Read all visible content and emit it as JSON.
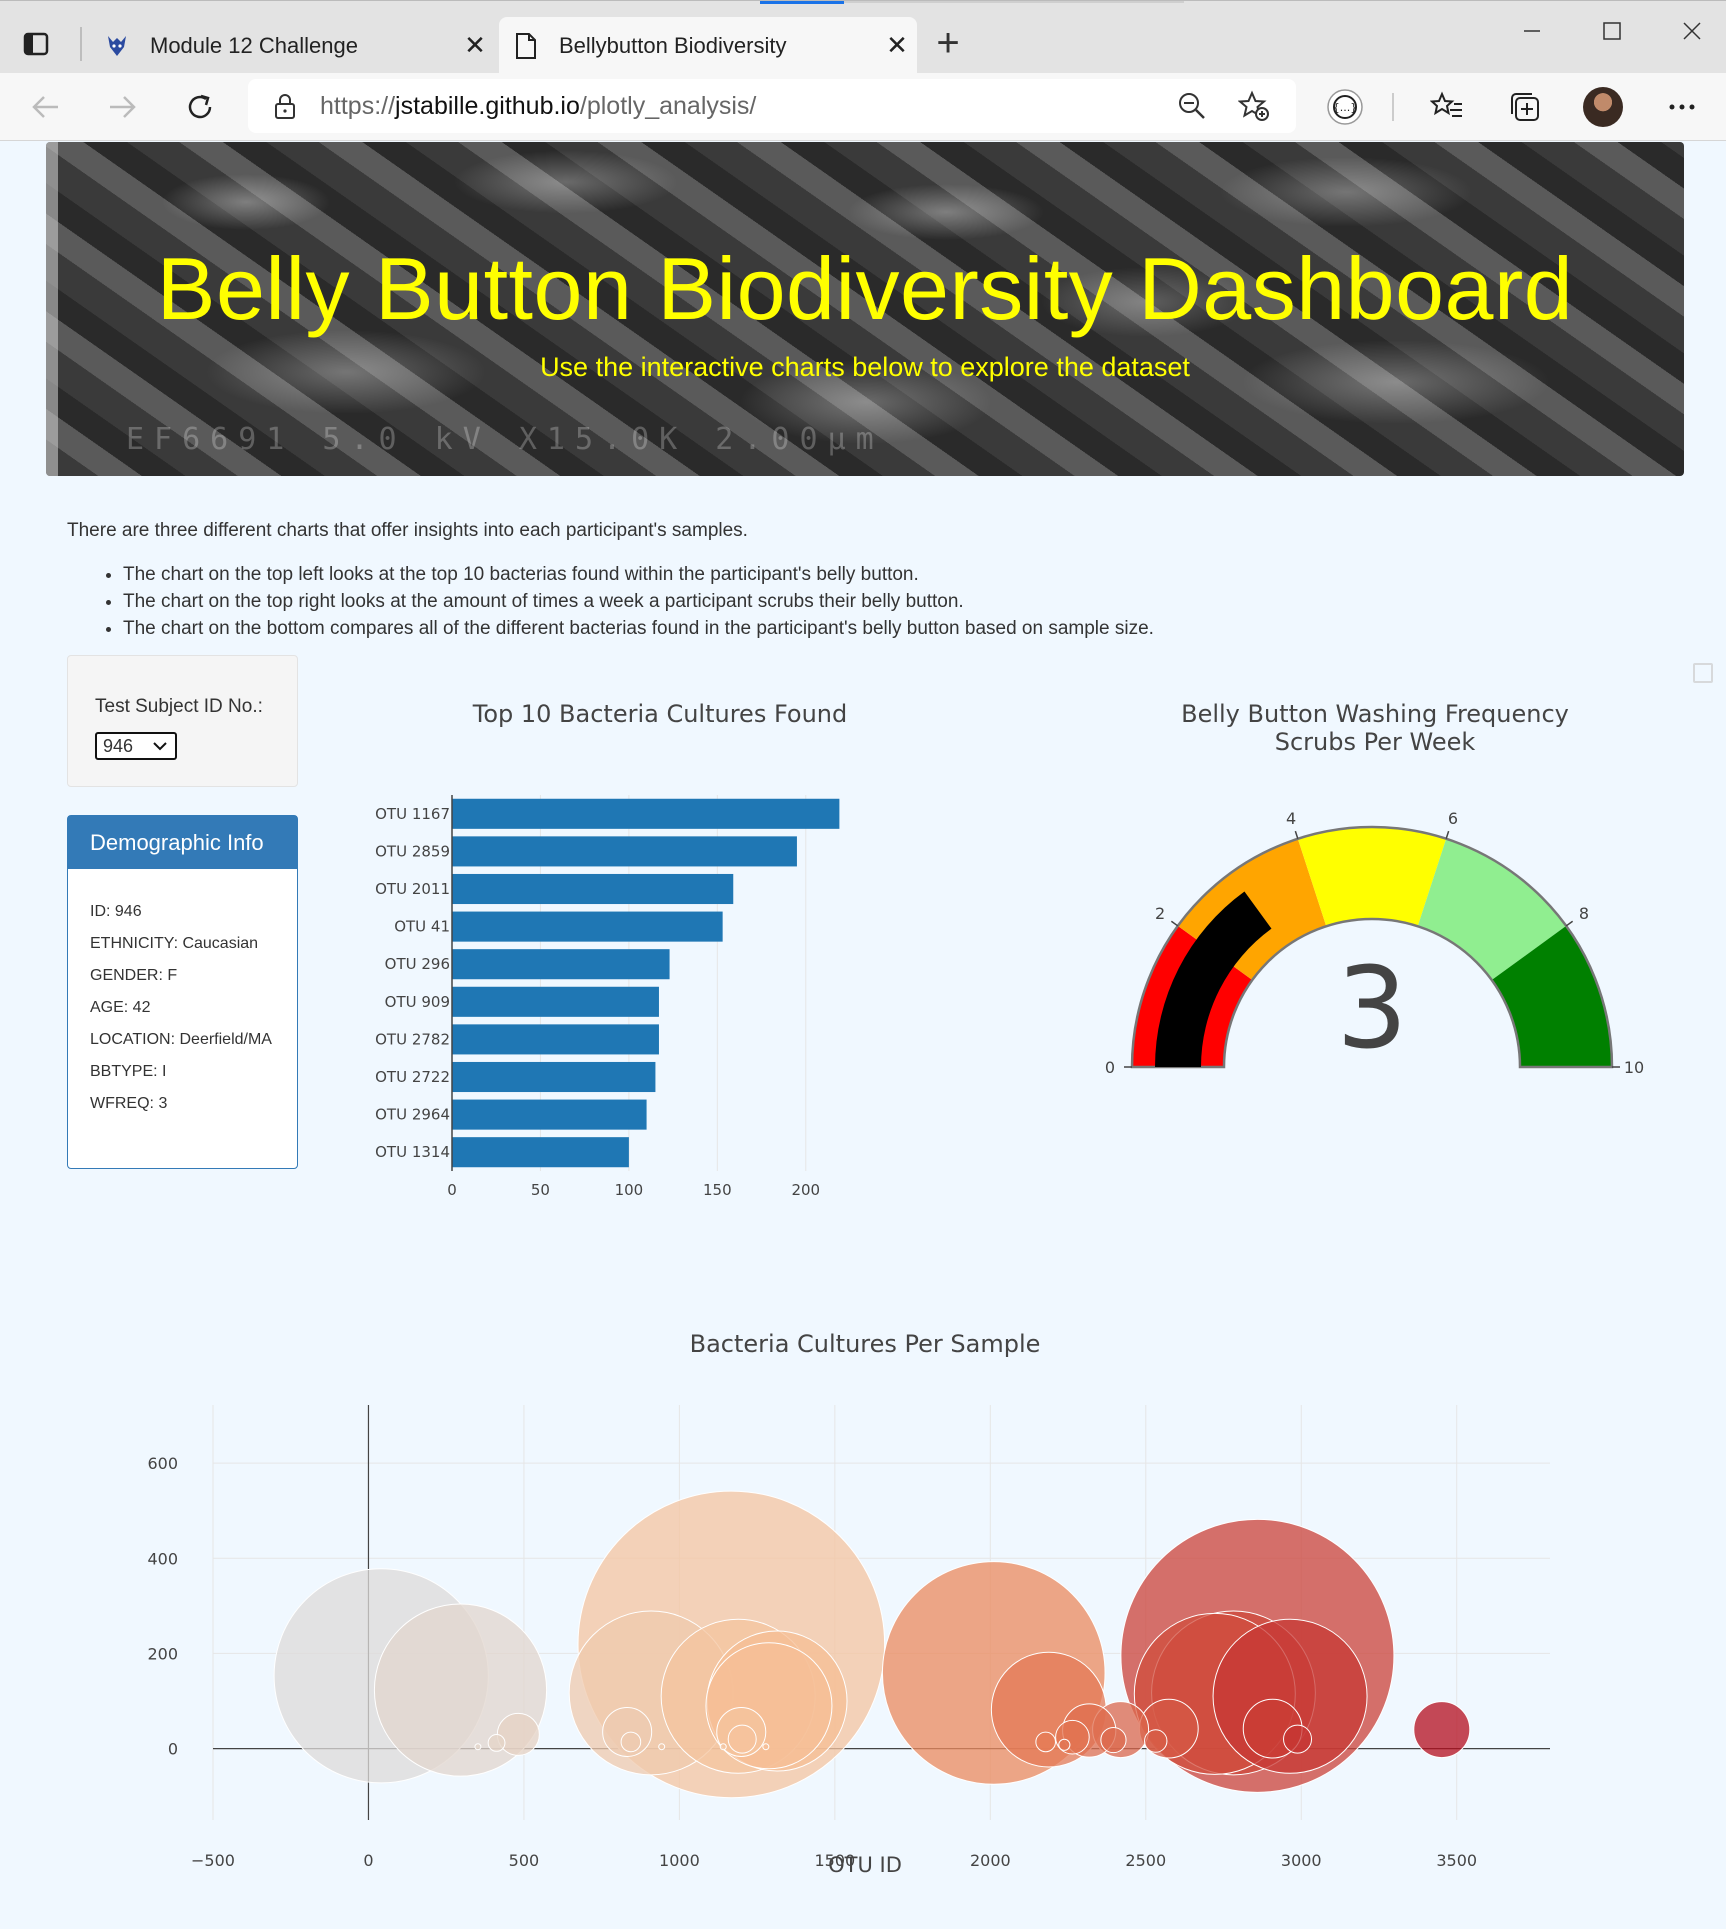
{
  "browser": {
    "tabs": [
      {
        "title": "Module 12 Challenge",
        "active": false,
        "icon": "fox-logo-icon"
      },
      {
        "title": "Bellybutton Biodiversity",
        "active": true,
        "icon": "page-icon"
      }
    ],
    "url_prefix": "https://",
    "url_host": "jstabille.github.io",
    "url_path": "/plotly_analysis/"
  },
  "header": {
    "title": "Belly Button Biodiversity Dashboard",
    "subtitle": "Use the interactive charts below to explore the dataset",
    "image_stamp": "EF6691 5.0 kV X15.0K 2.00µm"
  },
  "intro": {
    "text": "There are three different charts that offer insights into each participant's samples.",
    "bullets": [
      "The chart on the top left looks at the top 10 bacterias found within the participant's belly button.",
      "The chart on the top right looks at the amount of times a week a participant scrubs their belly button.",
      "The chart on the bottom compares all of the different bacterias found in the participant's belly button based on sample size."
    ]
  },
  "selector": {
    "label": "Test Subject ID No.:",
    "value": "946"
  },
  "demographics": {
    "heading": "Demographic Info",
    "rows": [
      "ID: 946",
      "ETHNICITY: Caucasian",
      "GENDER: F",
      "AGE: 42",
      "LOCATION: Deerfield/MA",
      "BBTYPE: I",
      "WFREQ: 3"
    ]
  },
  "colors": {
    "bar": "#1f77b4",
    "panel": "#337ab7",
    "title": "#ffff00",
    "page_bg": "#f0f8ff"
  },
  "chart_data": [
    {
      "type": "bar",
      "orientation": "horizontal",
      "title": "Top 10 Bacteria Cultures Found",
      "categories": [
        "OTU 1167",
        "OTU 2859",
        "OTU 2011",
        "OTU 41",
        "OTU 296",
        "OTU 909",
        "OTU 2782",
        "OTU 2722",
        "OTU 2964",
        "OTU 1314"
      ],
      "values": [
        219,
        195,
        159,
        153,
        123,
        117,
        117,
        115,
        110,
        100
      ],
      "xlim": [
        0,
        225
      ],
      "xticks": [
        0,
        50,
        100,
        150,
        200
      ],
      "grid": true
    },
    {
      "type": "gauge",
      "title": "Belly Button Washing Frequency",
      "subtitle": "Scrubs Per Week",
      "value": 3,
      "range": [
        0,
        10
      ],
      "ticks": [
        0,
        2,
        4,
        6,
        8,
        10
      ],
      "steps": [
        {
          "range": [
            0,
            2
          ],
          "color": "#ff0000"
        },
        {
          "range": [
            2,
            4
          ],
          "color": "#ffa500"
        },
        {
          "range": [
            4,
            6
          ],
          "color": "#ffff00"
        },
        {
          "range": [
            6,
            8
          ],
          "color": "#90ee90"
        },
        {
          "range": [
            8,
            10
          ],
          "color": "#008000"
        }
      ],
      "bar_color": "#000000"
    },
    {
      "type": "scatter",
      "title": "Bacteria Cultures Per Sample",
      "xlabel": "OTU ID",
      "xlim": [
        -500,
        3800
      ],
      "ylim": [
        -150,
        680
      ],
      "xticks": [
        -500,
        0,
        500,
        1000,
        1500,
        2000,
        2500,
        3000,
        3500
      ],
      "yticks": [
        0,
        200,
        400,
        600
      ],
      "points": [
        {
          "x": 41,
          "y": 153
        },
        {
          "x": 296,
          "y": 123
        },
        {
          "x": 482,
          "y": 30
        },
        {
          "x": 412,
          "y": 12
        },
        {
          "x": 352,
          "y": 4
        },
        {
          "x": 909,
          "y": 117
        },
        {
          "x": 832,
          "y": 35
        },
        {
          "x": 844,
          "y": 14
        },
        {
          "x": 943,
          "y": 4
        },
        {
          "x": 1167,
          "y": 219
        },
        {
          "x": 1314,
          "y": 100
        },
        {
          "x": 1288,
          "y": 90
        },
        {
          "x": 1189,
          "y": 110
        },
        {
          "x": 1199,
          "y": 35
        },
        {
          "x": 1202,
          "y": 20
        },
        {
          "x": 1141,
          "y": 4
        },
        {
          "x": 1278,
          "y": 4
        },
        {
          "x": 2011,
          "y": 159
        },
        {
          "x": 2188,
          "y": 82
        },
        {
          "x": 2178,
          "y": 14
        },
        {
          "x": 2264,
          "y": 24
        },
        {
          "x": 2318,
          "y": 38
        },
        {
          "x": 2238,
          "y": 8
        },
        {
          "x": 2419,
          "y": 40
        },
        {
          "x": 2396,
          "y": 18
        },
        {
          "x": 2574,
          "y": 42
        },
        {
          "x": 2532,
          "y": 16
        },
        {
          "x": 2859,
          "y": 195
        },
        {
          "x": 2722,
          "y": 115
        },
        {
          "x": 2782,
          "y": 117
        },
        {
          "x": 2964,
          "y": 110
        },
        {
          "x": 2908,
          "y": 42
        },
        {
          "x": 2988,
          "y": 20
        },
        {
          "x": 3452,
          "y": 40
        }
      ],
      "colorscale": "Reds",
      "grid": true
    }
  ]
}
